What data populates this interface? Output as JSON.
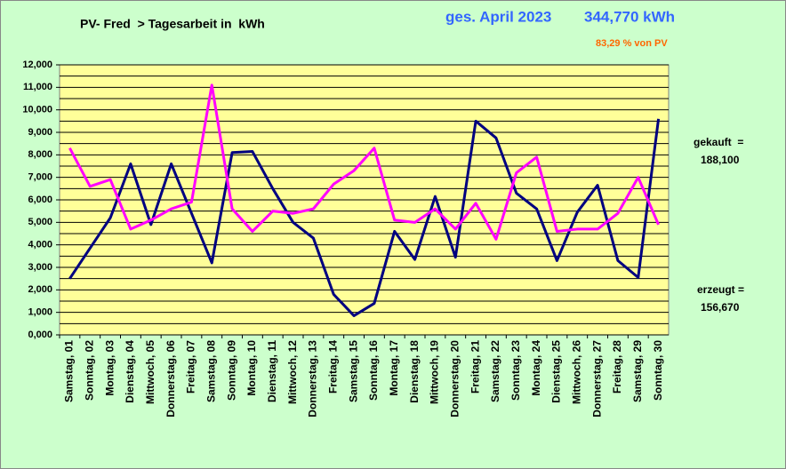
{
  "chart_data": {
    "type": "line",
    "title": "PV- Fred  > Tagesarbeit in  kWh",
    "annotations": {
      "period": "ges. April 2023",
      "total": "344,770 kWh",
      "share": "83,29 % von PV",
      "bought_label": "gekauft  =",
      "bought_value": "188,100",
      "produced_label": "erzeugt =",
      "produced_value": "156,670"
    },
    "categories": [
      "Samstag, 01",
      "Sonntag, 02",
      "Montag, 03",
      "Dienstag, 04",
      "Mittwoch, 05",
      "Donnerstag, 06",
      "Freitag, 07",
      "Samstag, 08",
      "Sonntag, 09",
      "Montag, 10",
      "Dienstag, 11",
      "Mittwoch, 12",
      "Donnerstag, 13",
      "Freitag, 14",
      "Samstag, 15",
      "Sonntag, 16",
      "Montag, 17",
      "Dienstag, 18",
      "Mittwoch, 19",
      "Donnerstag, 20",
      "Freitag, 21",
      "Samstag, 22",
      "Sonntag, 23",
      "Montag, 24",
      "Dienstag, 25",
      "Mittwoch, 26",
      "Donnerstag, 27",
      "Freitag, 28",
      "Samstag, 29",
      "Sonntag, 30"
    ],
    "series": [
      {
        "color": "#000080",
        "values": [
          2500,
          3850,
          5200,
          7600,
          4900,
          7600,
          5400,
          3200,
          8100,
          8150,
          6500,
          5000,
          4300,
          1800,
          850,
          1400,
          4600,
          3350,
          6150,
          3450,
          9500,
          8750,
          6300,
          5600,
          3300,
          5450,
          6650,
          3300,
          2550,
          9600
        ]
      },
      {
        "color": "#ff00ff",
        "values": [
          8300,
          6600,
          6900,
          4700,
          5100,
          5600,
          5900,
          11100,
          5600,
          4600,
          5500,
          5400,
          5600,
          6700,
          7300,
          8300,
          5100,
          5000,
          5600,
          4700,
          5850,
          4250,
          7200,
          7900,
          4600,
          4700,
          4700,
          5400,
          7000,
          4900
        ]
      }
    ],
    "ylim": [
      0,
      12000
    ],
    "yticks": [
      {
        "value": 0,
        "label": "0,000"
      },
      {
        "value": 1000,
        "label": "1,000"
      },
      {
        "value": 2000,
        "label": "2,000"
      },
      {
        "value": 3000,
        "label": "3,000"
      },
      {
        "value": 4000,
        "label": "4,000"
      },
      {
        "value": 5000,
        "label": "5,000"
      },
      {
        "value": 6000,
        "label": "6,000"
      },
      {
        "value": 7000,
        "label": "7,000"
      },
      {
        "value": 8000,
        "label": "8,000"
      },
      {
        "value": 9000,
        "label": "9,000"
      },
      {
        "value": 10000,
        "label": "10,000"
      },
      {
        "value": 11000,
        "label": "11,000"
      },
      {
        "value": 12000,
        "label": "12,000"
      }
    ],
    "minor_yticks": [
      500,
      1500,
      2500,
      3500,
      4500,
      5500,
      6500,
      7500,
      8500,
      9500,
      10500,
      11500
    ],
    "grid": true
  }
}
